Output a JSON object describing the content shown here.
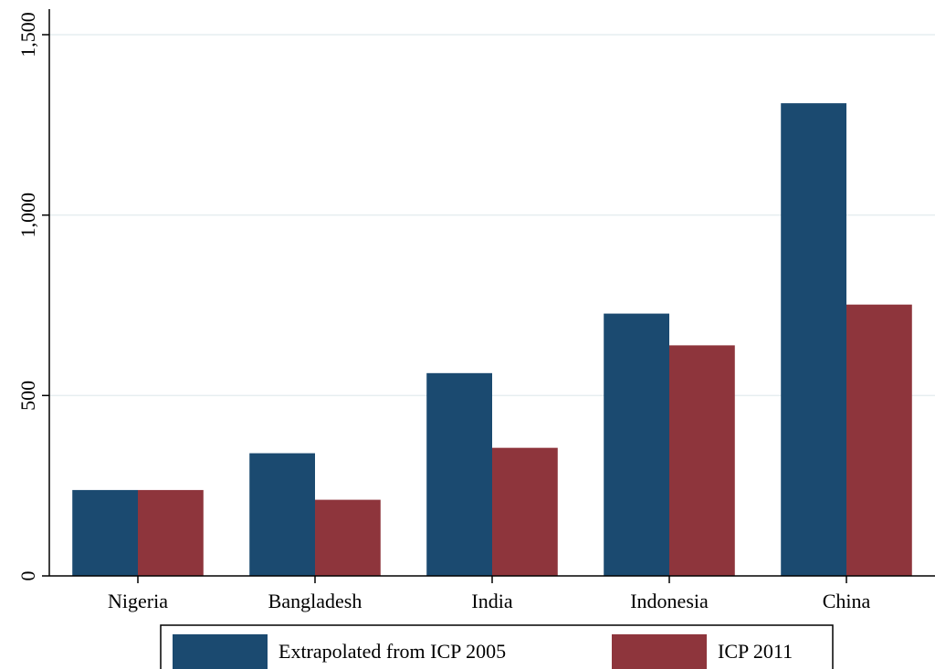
{
  "chart_data": {
    "type": "bar",
    "title": "",
    "xlabel": "",
    "ylabel": "",
    "categories": [
      "Nigeria",
      "Bangladesh",
      "India",
      "Indonesia",
      "China"
    ],
    "series": [
      {
        "name": "Extrapolated from ICP 2005",
        "color": "#1b4a70",
        "values": [
          238,
          340,
          562,
          727,
          1310
        ]
      },
      {
        "name": "ICP 2011",
        "color": "#8e353c",
        "values": [
          238,
          211,
          355,
          639,
          752
        ]
      }
    ],
    "ylim": [
      0,
      1500
    ],
    "yticks": [
      0,
      500,
      1000,
      1500
    ],
    "ytick_labels": [
      "0",
      "500",
      "1,000",
      "1,500"
    ],
    "grid": true,
    "grid_color": "#e6eef0",
    "legend_position": "bottom"
  }
}
